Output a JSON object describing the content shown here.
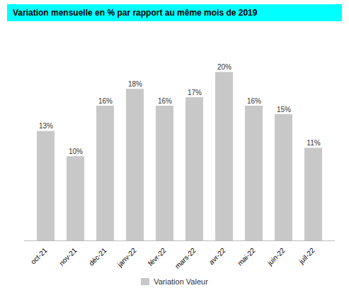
{
  "chart_data": {
    "type": "bar",
    "title": "Variation mensuelle en % par rapport au même mois de 2019",
    "categories": [
      "oct-21",
      "nov-21",
      "déc-21",
      "janv-22",
      "févr-22",
      "mars-22",
      "avr-22",
      "mai-22",
      "juin-22",
      "juil-22"
    ],
    "series": [
      {
        "name": "Variation Valeur",
        "color": "#c8c8c8",
        "values": [
          13,
          10,
          16,
          18,
          16,
          17,
          20,
          16,
          15,
          11
        ],
        "value_labels": [
          "13%",
          "10%",
          "16%",
          "18%",
          "16%",
          "17%",
          "20%",
          "16%",
          "15%",
          "11%"
        ]
      }
    ],
    "ylim": [
      0,
      24
    ],
    "grid": false,
    "legend": "bottom",
    "data_labels": true,
    "tick_labels": "x"
  }
}
